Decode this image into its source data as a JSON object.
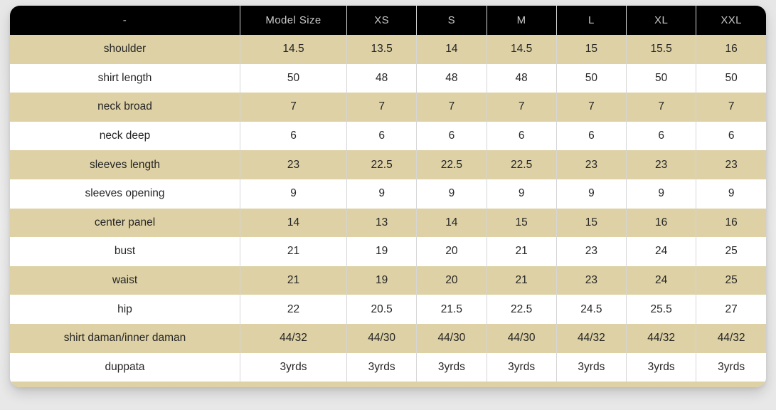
{
  "chart_data": {
    "type": "table",
    "columns": [
      "-",
      "Model Size",
      "XS",
      "S",
      "M",
      "L",
      "XL",
      "XXL"
    ],
    "rows": [
      {
        "label": "shoulder",
        "values": [
          "14.5",
          "13.5",
          "14",
          "14.5",
          "15",
          "15.5",
          "16"
        ]
      },
      {
        "label": "shirt length",
        "values": [
          "50",
          "48",
          "48",
          "48",
          "50",
          "50",
          "50"
        ]
      },
      {
        "label": "neck broad",
        "values": [
          "7",
          "7",
          "7",
          "7",
          "7",
          "7",
          "7"
        ]
      },
      {
        "label": "neck deep",
        "values": [
          "6",
          "6",
          "6",
          "6",
          "6",
          "6",
          "6"
        ]
      },
      {
        "label": "sleeves length",
        "values": [
          "23",
          "22.5",
          "22.5",
          "22.5",
          "23",
          "23",
          "23"
        ]
      },
      {
        "label": "sleeves opening",
        "values": [
          "9",
          "9",
          "9",
          "9",
          "9",
          "9",
          "9"
        ]
      },
      {
        "label": "center panel",
        "values": [
          "14",
          "13",
          "14",
          "15",
          "15",
          "16",
          "16"
        ]
      },
      {
        "label": "bust",
        "values": [
          "21",
          "19",
          "20",
          "21",
          "23",
          "24",
          "25"
        ]
      },
      {
        "label": "waist",
        "values": [
          "21",
          "19",
          "20",
          "21",
          "23",
          "24",
          "25"
        ]
      },
      {
        "label": "hip",
        "values": [
          "22",
          "20.5",
          "21.5",
          "22.5",
          "24.5",
          "25.5",
          "27"
        ]
      },
      {
        "label": "shirt daman/inner daman",
        "values": [
          "44/32",
          "44/30",
          "44/30",
          "44/30",
          "44/32",
          "44/32",
          "44/32"
        ]
      },
      {
        "label": "duppata",
        "values": [
          "3yrds",
          "3yrds",
          "3yrds",
          "3yrds",
          "3yrds",
          "3yrds",
          "3yrds"
        ]
      }
    ]
  },
  "style": {
    "page_bg": "#ebebeb",
    "header_bg": "#000000",
    "header_text": "#c9c9c9",
    "row_alt_bg": "#ddd1a5",
    "row_bg": "#ffffff",
    "cell_text": "#262626",
    "divider": "#d6d6d6"
  }
}
